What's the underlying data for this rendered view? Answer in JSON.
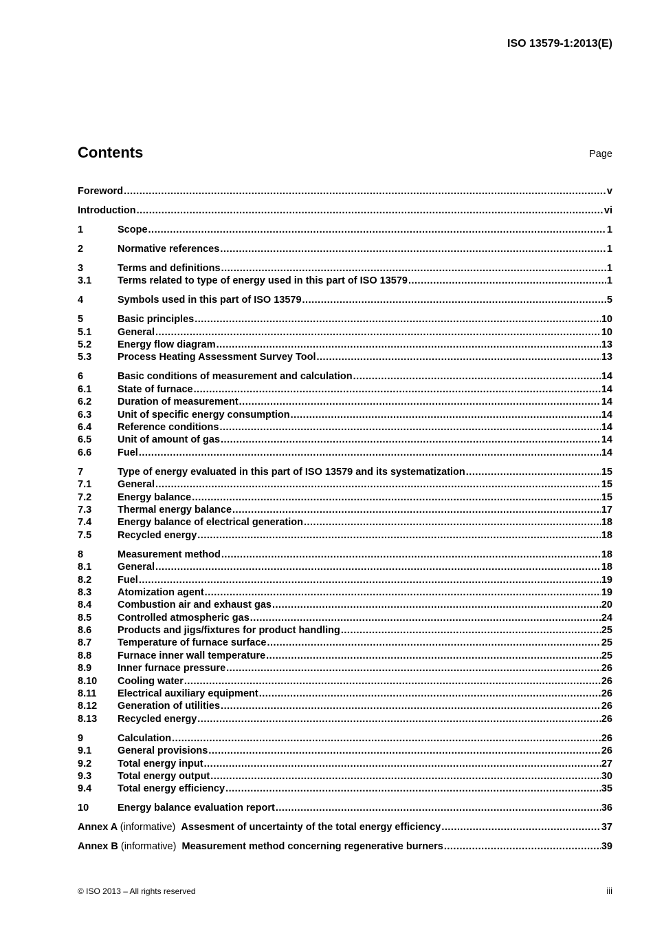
{
  "header": {
    "doc_id": "ISO 13579-1:2013(E)"
  },
  "contents": {
    "title": "Contents",
    "page_label": "Page"
  },
  "groups": [
    [
      {
        "num": "",
        "title": "Foreword",
        "page": "v"
      }
    ],
    [
      {
        "num": "",
        "title": "Introduction",
        "page": "vi"
      }
    ],
    [
      {
        "num": "1",
        "title": "Scope",
        "page": "1"
      }
    ],
    [
      {
        "num": "2",
        "title": "Normative references",
        "page": "1"
      }
    ],
    [
      {
        "num": "3",
        "title": "Terms and definitions",
        "page": "1"
      },
      {
        "num": "3.1",
        "title": "Terms related to type of energy used in this part of ISO 13579",
        "page": "1"
      }
    ],
    [
      {
        "num": "4",
        "title": "Symbols used in this part of ISO 13579",
        "page": "5"
      }
    ],
    [
      {
        "num": "5",
        "title": "Basic principles",
        "page": "10"
      },
      {
        "num": "5.1",
        "title": "General",
        "page": "10"
      },
      {
        "num": "5.2",
        "title": "Energy flow diagram",
        "page": "13"
      },
      {
        "num": "5.3",
        "title": "Process Heating Assessment Survey Tool",
        "page": "13"
      }
    ],
    [
      {
        "num": "6",
        "title": "Basic conditions of measurement and calculation",
        "page": "14"
      },
      {
        "num": "6.1",
        "title": "State of furnace",
        "page": "14"
      },
      {
        "num": "6.2",
        "title": "Duration of measurement",
        "page": "14"
      },
      {
        "num": "6.3",
        "title": "Unit of specific energy consumption",
        "page": "14"
      },
      {
        "num": "6.4",
        "title": "Reference conditions",
        "page": "14"
      },
      {
        "num": "6.5",
        "title": "Unit of amount of gas",
        "page": "14"
      },
      {
        "num": "6.6",
        "title": "Fuel",
        "page": "14"
      }
    ],
    [
      {
        "num": "7",
        "title": "Type of energy evaluated in this part of ISO 13579 and its systematization",
        "page": "15"
      },
      {
        "num": "7.1",
        "title": "General",
        "page": "15"
      },
      {
        "num": "7.2",
        "title": "Energy balance",
        "page": "15"
      },
      {
        "num": "7.3",
        "title": "Thermal energy balance",
        "page": "17"
      },
      {
        "num": "7.4",
        "title": "Energy balance of electrical generation",
        "page": "18"
      },
      {
        "num": "7.5",
        "title": "Recycled energy",
        "page": "18"
      }
    ],
    [
      {
        "num": "8",
        "title": "Measurement method",
        "page": "18"
      },
      {
        "num": "8.1",
        "title": "General",
        "page": "18"
      },
      {
        "num": "8.2",
        "title": "Fuel",
        "page": "19"
      },
      {
        "num": "8.3",
        "title": "Atomization agent",
        "page": "19"
      },
      {
        "num": "8.4",
        "title": "Combustion air and exhaust gas",
        "page": "20"
      },
      {
        "num": "8.5",
        "title": "Controlled atmospheric gas",
        "page": "24"
      },
      {
        "num": "8.6",
        "title": "Products and jigs/fixtures for product handling",
        "page": "25"
      },
      {
        "num": "8.7",
        "title": "Temperature of furnace surface",
        "page": "25"
      },
      {
        "num": "8.8",
        "title": "Furnace inner wall temperature",
        "page": "25"
      },
      {
        "num": "8.9",
        "title": "Inner furnace pressure",
        "page": "26"
      },
      {
        "num": "8.10",
        "title": "Cooling water",
        "page": "26"
      },
      {
        "num": "8.11",
        "title": "Electrical auxiliary equipment",
        "page": "26"
      },
      {
        "num": "8.12",
        "title": "Generation of utilities",
        "page": "26"
      },
      {
        "num": "8.13",
        "title": "Recycled energy",
        "page": "26"
      }
    ],
    [
      {
        "num": "9",
        "title": "Calculation",
        "page": "26"
      },
      {
        "num": "9.1",
        "title": "General provisions",
        "page": "26"
      },
      {
        "num": "9.2",
        "title": "Total energy input",
        "page": "27"
      },
      {
        "num": "9.3",
        "title": "Total energy output",
        "page": "30"
      },
      {
        "num": "9.4",
        "title": "Total energy efficiency",
        "page": "35"
      }
    ],
    [
      {
        "num": "10",
        "title": "Energy balance evaluation report",
        "page": "36"
      }
    ],
    [
      {
        "annex": "Annex A",
        "informative": "(informative)",
        "title": "Assesment of uncertainty of the total energy efficiency",
        "page": "37"
      }
    ],
    [
      {
        "annex": "Annex B",
        "informative": "(informative)",
        "title": "Measurement method concerning regenerative burners",
        "page": "39"
      }
    ]
  ],
  "footer": {
    "copyright": "© ISO 2013 – All rights reserved",
    "folio": "iii"
  }
}
